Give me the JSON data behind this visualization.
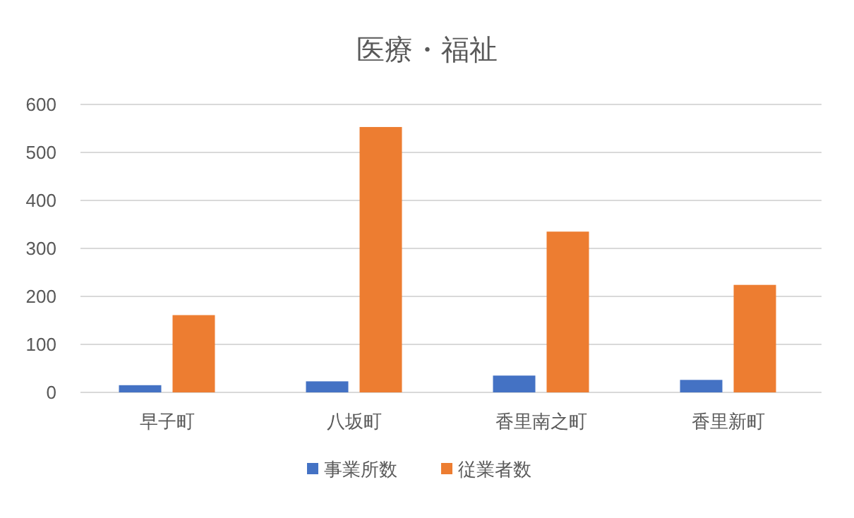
{
  "chart_data": {
    "type": "bar",
    "title": "医療・福祉",
    "categories": [
      "早子町",
      "八坂町",
      "香里南之町",
      "香里新町"
    ],
    "series": [
      {
        "name": "事業所数",
        "color": "#4472c4",
        "values": [
          15,
          23,
          35,
          26
        ]
      },
      {
        "name": "従業者数",
        "color": "#ed7d31",
        "values": [
          161,
          553,
          335,
          224
        ]
      }
    ],
    "ylim": [
      0,
      600
    ],
    "yticks": [
      0,
      100,
      200,
      300,
      400,
      500,
      600
    ],
    "grid": "y",
    "legend": "bottom"
  }
}
